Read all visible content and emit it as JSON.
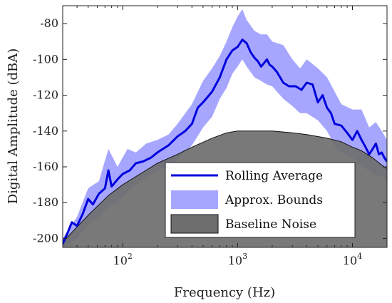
{
  "chart_data": {
    "type": "area",
    "title": "",
    "xlabel": "Frequency (Hz)",
    "ylabel": "Digital Amplitude (dBA)",
    "xscale": "log",
    "xlim": [
      30,
      20000
    ],
    "ylim": [
      -205,
      -70
    ],
    "grid": false,
    "legend_position": "bottom-right",
    "colors": {
      "rolling_average": "#0000dd",
      "approx_bounds": "#a6a6ff",
      "baseline_noise": "#6e6e6e",
      "overlap": "#4f4f7a"
    },
    "x_ticks": [
      {
        "value": 100,
        "base": "10",
        "exp": "2"
      },
      {
        "value": 1000,
        "base": "10",
        "exp": "3"
      },
      {
        "value": 10000,
        "base": "10",
        "exp": "4"
      }
    ],
    "y_ticks": [
      {
        "value": -80,
        "label": "-80"
      },
      {
        "value": -100,
        "label": "-100"
      },
      {
        "value": -120,
        "label": "-120"
      },
      {
        "value": -140,
        "label": "-140"
      },
      {
        "value": -160,
        "label": "-160"
      },
      {
        "value": -180,
        "label": "-180"
      },
      {
        "value": -200,
        "label": "-200"
      }
    ],
    "series": [
      {
        "name": "Rolling Average",
        "kind": "line",
        "x": [
          30,
          33,
          36,
          40,
          45,
          50,
          55,
          62,
          70,
          75,
          80,
          90,
          100,
          115,
          130,
          150,
          175,
          200,
          250,
          300,
          350,
          400,
          450,
          500,
          600,
          700,
          800,
          900,
          1000,
          1100,
          1200,
          1300,
          1400,
          1500,
          1600,
          1700,
          1800,
          1900,
          2000,
          2200,
          2500,
          2800,
          3200,
          3600,
          4000,
          4500,
          5000,
          5500,
          6000,
          6500,
          7000,
          8000,
          9000,
          10000,
          11000,
          12000,
          13000,
          14000,
          15000,
          16000,
          17000,
          18000,
          19000,
          20000
        ],
        "y": [
          -203,
          -197,
          -191,
          -193,
          -186,
          -178,
          -181,
          -175,
          -172,
          -162,
          -171,
          -167,
          -164,
          -162,
          -158,
          -157,
          -155,
          -152,
          -148,
          -143,
          -140,
          -136,
          -127,
          -124,
          -118,
          -110,
          -100,
          -95,
          -93,
          -89,
          -91,
          -96,
          -99,
          -101,
          -104,
          -102,
          -100,
          -103,
          -104,
          -107,
          -113,
          -115,
          -115,
          -117,
          -113,
          -114,
          -124,
          -120,
          -127,
          -130,
          -136,
          -137,
          -141,
          -145,
          -140,
          -145,
          -149,
          -153,
          -150,
          -147,
          -153,
          -152,
          -155,
          -157
        ]
      },
      {
        "name": "Approx. Bounds",
        "kind": "band",
        "x": [
          30,
          40,
          50,
          62,
          75,
          90,
          110,
          130,
          160,
          200,
          250,
          300,
          400,
          500,
          600,
          700,
          800,
          900,
          1000,
          1100,
          1200,
          1400,
          1600,
          1800,
          2000,
          2500,
          3000,
          3500,
          4000,
          5000,
          6000,
          7000,
          8000,
          10000,
          12000,
          14000,
          16000,
          18000,
          20000
        ],
        "upper": [
          -200,
          -188,
          -172,
          -168,
          -150,
          -160,
          -150,
          -152,
          -147,
          -145,
          -142,
          -136,
          -125,
          -112,
          -105,
          -98,
          -90,
          -82,
          -76,
          -72,
          -78,
          -84,
          -86,
          -86,
          -90,
          -92,
          -100,
          -105,
          -100,
          -105,
          -110,
          -118,
          -125,
          -128,
          -128,
          -138,
          -135,
          -140,
          -145
        ],
        "lower": [
          -205,
          -200,
          -192,
          -188,
          -182,
          -180,
          -174,
          -170,
          -166,
          -162,
          -160,
          -156,
          -148,
          -138,
          -132,
          -122,
          -116,
          -108,
          -104,
          -100,
          -104,
          -110,
          -112,
          -114,
          -115,
          -122,
          -126,
          -130,
          -130,
          -134,
          -140,
          -148,
          -152,
          -155,
          -160,
          -162,
          -165,
          -165,
          -168
        ]
      },
      {
        "name": "Baseline Noise",
        "kind": "area",
        "x": [
          30,
          50,
          75,
          100,
          150,
          200,
          300,
          400,
          600,
          800,
          1000,
          1200,
          1500,
          2000,
          3000,
          4000,
          6000,
          8000,
          10000,
          12000,
          15000,
          18000,
          20000
        ],
        "y": [
          -202,
          -187,
          -176,
          -170,
          -163,
          -158,
          -153,
          -149,
          -144,
          -141,
          -140,
          -140,
          -140,
          -140,
          -141,
          -142,
          -144,
          -146,
          -149,
          -151,
          -155,
          -159,
          -161
        ]
      }
    ],
    "legend": [
      {
        "label": "Rolling Average",
        "symbol": "line"
      },
      {
        "label": "Approx. Bounds",
        "symbol": "patch-bounds"
      },
      {
        "label": "Baseline Noise",
        "symbol": "patch-noise"
      }
    ]
  }
}
